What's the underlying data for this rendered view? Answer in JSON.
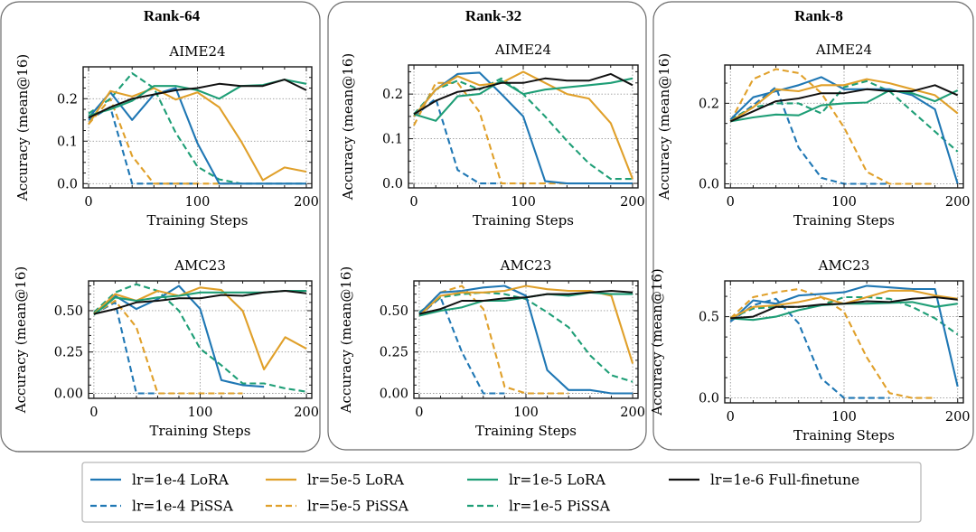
{
  "figure": {
    "legend_position": "bottom-center",
    "legend": [
      {
        "key": "lora_1e4",
        "label": "lr=1e-4 LoRA",
        "color": "#1f77b4",
        "dashed": false
      },
      {
        "key": "lora_5e5",
        "label": "lr=5e-5 LoRA",
        "color": "#e0a02a",
        "dashed": false
      },
      {
        "key": "lora_1e5",
        "label": "lr=1e-5 LoRA",
        "color": "#1e9e76",
        "dashed": false
      },
      {
        "key": "full_1e6",
        "label": "lr=1e-6 Full-finetune",
        "color": "#111111",
        "dashed": false
      },
      {
        "key": "pissa_1e4",
        "label": "lr=1e-4 PiSSA",
        "color": "#1f77b4",
        "dashed": true
      },
      {
        "key": "pissa_5e5",
        "label": "lr=5e-5 PiSSA",
        "color": "#e0a02a",
        "dashed": true
      },
      {
        "key": "pissa_1e5",
        "label": "lr=1e-5 PiSSA",
        "color": "#1e9e76",
        "dashed": true
      }
    ]
  },
  "chart_data": [
    {
      "type": "line",
      "group": "Rank-64",
      "title": "AIME24",
      "xlabel": "Training Steps",
      "ylabel": "Accuracy (mean@16)",
      "xlim": [
        -5,
        205
      ],
      "ylim": [
        -0.01,
        0.275
      ],
      "xticks": [
        0,
        100,
        200
      ],
      "yticks": [
        0.0,
        0.1,
        0.2
      ],
      "ytick_labels": [
        "0.0",
        "0.1",
        "0.2"
      ],
      "grid": true,
      "x": [
        0,
        20,
        40,
        60,
        80,
        100,
        120,
        140,
        160,
        180,
        200
      ],
      "series": {
        "full_1e6": [
          0.155,
          0.18,
          0.2,
          0.21,
          0.22,
          0.225,
          0.235,
          0.23,
          0.23,
          0.245,
          0.22
        ],
        "lora_1e4": [
          0.155,
          0.215,
          0.15,
          0.21,
          0.225,
          0.095,
          0.0,
          0.0,
          0.0,
          0.0,
          0.0
        ],
        "lora_5e5": [
          0.14,
          0.218,
          0.205,
          0.225,
          0.198,
          0.215,
          0.18,
          0.1,
          0.008,
          0.038,
          0.028
        ],
        "lora_1e5": [
          0.16,
          0.175,
          0.195,
          0.23,
          0.23,
          0.22,
          0.2,
          0.23,
          0.232,
          0.245,
          0.235
        ],
        "pissa_1e4": [
          0.15,
          0.18,
          0.0,
          0.0,
          0.0,
          0.0,
          null,
          null,
          null,
          null,
          null
        ],
        "pissa_5e5": [
          0.14,
          0.2,
          0.065,
          0.0,
          0.0,
          0.0,
          0.0,
          0.0,
          null,
          null,
          null
        ],
        "pissa_1e5": [
          0.165,
          0.2,
          0.26,
          0.225,
          0.12,
          0.04,
          0.01,
          0.0,
          0.0,
          0.0,
          0.0
        ]
      }
    },
    {
      "type": "line",
      "group": "Rank-64",
      "title": "AMC23",
      "xlabel": "Training Steps",
      "ylabel": "Accuracy (mean@16)",
      "xlim": [
        -5,
        205
      ],
      "ylim": [
        -0.03,
        0.68
      ],
      "xticks": [
        0,
        100,
        200
      ],
      "yticks": [
        0.0,
        0.25,
        0.5
      ],
      "ytick_labels": [
        "0.00",
        "0.25",
        "0.50"
      ],
      "grid": true,
      "x": [
        0,
        20,
        40,
        60,
        80,
        100,
        120,
        140,
        160,
        180,
        200
      ],
      "series": {
        "full_1e6": [
          0.48,
          0.51,
          0.55,
          0.56,
          0.575,
          0.575,
          0.595,
          0.59,
          0.61,
          0.62,
          0.605
        ],
        "lora_1e4": [
          0.48,
          0.59,
          0.51,
          0.57,
          0.65,
          0.51,
          0.08,
          0.05,
          0.04,
          null,
          null
        ],
        "lora_5e5": [
          0.48,
          0.6,
          0.56,
          0.62,
          0.59,
          0.64,
          0.625,
          0.5,
          0.145,
          0.34,
          0.27
        ],
        "lora_1e5": [
          0.475,
          0.58,
          0.56,
          0.58,
          0.59,
          0.61,
          0.61,
          0.61,
          0.61,
          0.62,
          0.62
        ],
        "pissa_1e4": [
          0.48,
          0.55,
          0.0,
          0.0,
          null,
          null,
          null,
          null,
          null,
          null,
          null
        ],
        "pissa_5e5": [
          0.48,
          0.56,
          0.4,
          0.0,
          0.0,
          0.0,
          0.0,
          0.0,
          null,
          null,
          null
        ],
        "pissa_1e5": [
          0.49,
          0.61,
          0.66,
          0.62,
          0.5,
          0.27,
          0.17,
          0.06,
          0.06,
          0.03,
          0.01
        ]
      }
    },
    {
      "type": "line",
      "group": "Rank-32",
      "title": "AIME24",
      "xlabel": "Training Steps",
      "ylabel": "Accuracy (mean@16)",
      "xlim": [
        -5,
        205
      ],
      "ylim": [
        -0.01,
        0.265
      ],
      "xticks": [
        0,
        100,
        200
      ],
      "yticks": [
        0.0,
        0.1,
        0.2
      ],
      "ytick_labels": [
        "0.0",
        "0.1",
        "0.2"
      ],
      "grid": true,
      "x": [
        0,
        20,
        40,
        60,
        80,
        100,
        120,
        140,
        160,
        180,
        200
      ],
      "series": {
        "full_1e6": [
          0.155,
          0.185,
          0.205,
          0.212,
          0.225,
          0.225,
          0.235,
          0.23,
          0.23,
          0.245,
          0.22
        ],
        "lora_1e4": [
          0.15,
          0.21,
          0.245,
          0.248,
          0.2,
          0.15,
          0.005,
          0.0,
          0.0,
          0.0,
          0.0
        ],
        "lora_5e5": [
          0.15,
          0.21,
          0.24,
          0.22,
          0.225,
          0.25,
          0.225,
          0.2,
          0.19,
          0.135,
          0.01
        ],
        "lora_1e5": [
          0.155,
          0.14,
          0.195,
          0.2,
          0.23,
          0.2,
          0.21,
          0.215,
          0.22,
          0.225,
          0.235
        ],
        "pissa_1e4": [
          0.15,
          0.19,
          0.03,
          0.0,
          0.0,
          null,
          null,
          null,
          null,
          null,
          null
        ],
        "pissa_5e5": [
          0.13,
          0.225,
          0.225,
          0.16,
          0.0,
          0.0,
          0.0,
          0.0,
          null,
          null,
          null
        ],
        "pissa_1e5": [
          0.155,
          0.21,
          0.23,
          0.21,
          0.235,
          0.2,
          0.15,
          0.095,
          0.045,
          0.01,
          0.01
        ]
      }
    },
    {
      "type": "line",
      "group": "Rank-32",
      "title": "AMC23",
      "xlabel": "Training Steps",
      "ylabel": "Accuracy (mean@16)",
      "xlim": [
        -5,
        205
      ],
      "ylim": [
        -0.03,
        0.68
      ],
      "xticks": [
        0,
        100,
        200
      ],
      "yticks": [
        0.0,
        0.25,
        0.5
      ],
      "ytick_labels": [
        "0.00",
        "0.25",
        "0.50"
      ],
      "grid": true,
      "x": [
        0,
        20,
        40,
        60,
        80,
        100,
        120,
        140,
        160,
        180,
        200
      ],
      "series": {
        "full_1e6": [
          0.48,
          0.51,
          0.56,
          0.56,
          0.575,
          0.58,
          0.6,
          0.6,
          0.61,
          0.62,
          0.61
        ],
        "lora_1e4": [
          0.48,
          0.61,
          0.62,
          0.64,
          0.65,
          0.59,
          0.14,
          0.02,
          0.02,
          0.0,
          0.0
        ],
        "lora_5e5": [
          0.47,
          0.59,
          0.61,
          0.61,
          0.62,
          0.65,
          0.63,
          0.62,
          0.62,
          0.59,
          0.18
        ],
        "lora_1e5": [
          0.47,
          0.5,
          0.52,
          0.56,
          0.56,
          0.58,
          0.6,
          0.59,
          0.61,
          0.6,
          0.6
        ],
        "pissa_1e4": [
          0.47,
          0.58,
          0.25,
          0.0,
          0.0,
          null,
          null,
          null,
          null,
          null,
          null
        ],
        "pissa_5e5": [
          0.48,
          0.61,
          0.65,
          0.51,
          0.04,
          0.0,
          0.0,
          0.0,
          null,
          null,
          null
        ],
        "pissa_1e5": [
          0.49,
          0.58,
          0.6,
          0.61,
          0.6,
          0.57,
          0.49,
          0.4,
          0.23,
          0.11,
          0.07
        ]
      }
    },
    {
      "type": "line",
      "group": "Rank-8",
      "title": "AIME24",
      "xlabel": "Training Steps",
      "ylabel": "Accuracy (mean@16)",
      "xlim": [
        -5,
        205
      ],
      "ylim": [
        -0.01,
        0.295
      ],
      "xticks": [
        0,
        100,
        200
      ],
      "yticks": [
        0.0,
        0.2
      ],
      "ytick_labels": [
        "0.0",
        "0.2"
      ],
      "grid": true,
      "x": [
        0,
        20,
        40,
        60,
        80,
        100,
        120,
        140,
        160,
        180,
        200
      ],
      "series": {
        "full_1e6": [
          0.155,
          0.18,
          0.205,
          0.212,
          0.225,
          0.225,
          0.235,
          0.23,
          0.23,
          0.245,
          0.22
        ],
        "lora_1e4": [
          0.16,
          0.215,
          0.23,
          0.245,
          0.265,
          0.235,
          0.235,
          0.235,
          0.22,
          0.185,
          0.0
        ],
        "lora_5e5": [
          0.155,
          0.19,
          0.235,
          0.23,
          0.245,
          0.245,
          0.26,
          0.25,
          0.235,
          0.22,
          0.175
        ],
        "lora_1e5": [
          0.155,
          0.165,
          0.172,
          0.17,
          0.195,
          0.2,
          0.202,
          0.232,
          0.225,
          0.205,
          0.232
        ],
        "pissa_1e4": [
          0.155,
          0.195,
          0.24,
          0.09,
          0.015,
          0.0,
          0.0,
          0.0,
          null,
          null,
          null
        ],
        "pissa_5e5": [
          0.155,
          0.26,
          0.285,
          0.275,
          0.225,
          0.14,
          0.03,
          0.0,
          0.0,
          0.0,
          null
        ],
        "pissa_1e5": [
          0.16,
          0.19,
          0.2,
          0.2,
          0.175,
          0.24,
          0.255,
          0.23,
          0.18,
          0.13,
          0.08
        ]
      }
    },
    {
      "type": "line",
      "group": "Rank-8",
      "title": "AMC23",
      "xlabel": "Training Steps",
      "ylabel": "Accuracy (mean@16)",
      "xlim": [
        -5,
        205
      ],
      "ylim": [
        -0.03,
        0.72
      ],
      "xticks": [
        0,
        100,
        200
      ],
      "yticks": [
        0.0,
        0.5
      ],
      "ytick_labels": [
        "0.0",
        "0.5"
      ],
      "grid": true,
      "x": [
        0,
        20,
        40,
        60,
        80,
        100,
        120,
        140,
        160,
        180,
        200
      ],
      "series": {
        "full_1e6": [
          0.49,
          0.5,
          0.56,
          0.56,
          0.575,
          0.58,
          0.595,
          0.59,
          0.61,
          0.62,
          0.605
        ],
        "lora_1e4": [
          0.47,
          0.6,
          0.58,
          0.63,
          0.64,
          0.65,
          0.69,
          0.68,
          0.67,
          0.67,
          0.07
        ],
        "lora_5e5": [
          0.49,
          0.56,
          0.57,
          0.59,
          0.62,
          0.58,
          0.62,
          0.66,
          0.66,
          0.63,
          0.61
        ],
        "lora_1e5": [
          0.49,
          0.48,
          0.5,
          0.54,
          0.57,
          0.58,
          0.58,
          0.585,
          0.59,
          0.56,
          0.58
        ],
        "pissa_1e4": [
          0.47,
          0.57,
          0.61,
          0.46,
          0.12,
          0.0,
          0.0,
          0.0,
          null,
          null,
          null
        ],
        "pissa_5e5": [
          0.49,
          0.62,
          0.65,
          0.67,
          0.62,
          0.53,
          0.25,
          0.03,
          0.0,
          0.0,
          null
        ],
        "pissa_1e5": [
          0.49,
          0.55,
          0.56,
          0.56,
          0.57,
          0.62,
          0.62,
          0.61,
          0.56,
          0.49,
          0.39
        ]
      }
    }
  ]
}
